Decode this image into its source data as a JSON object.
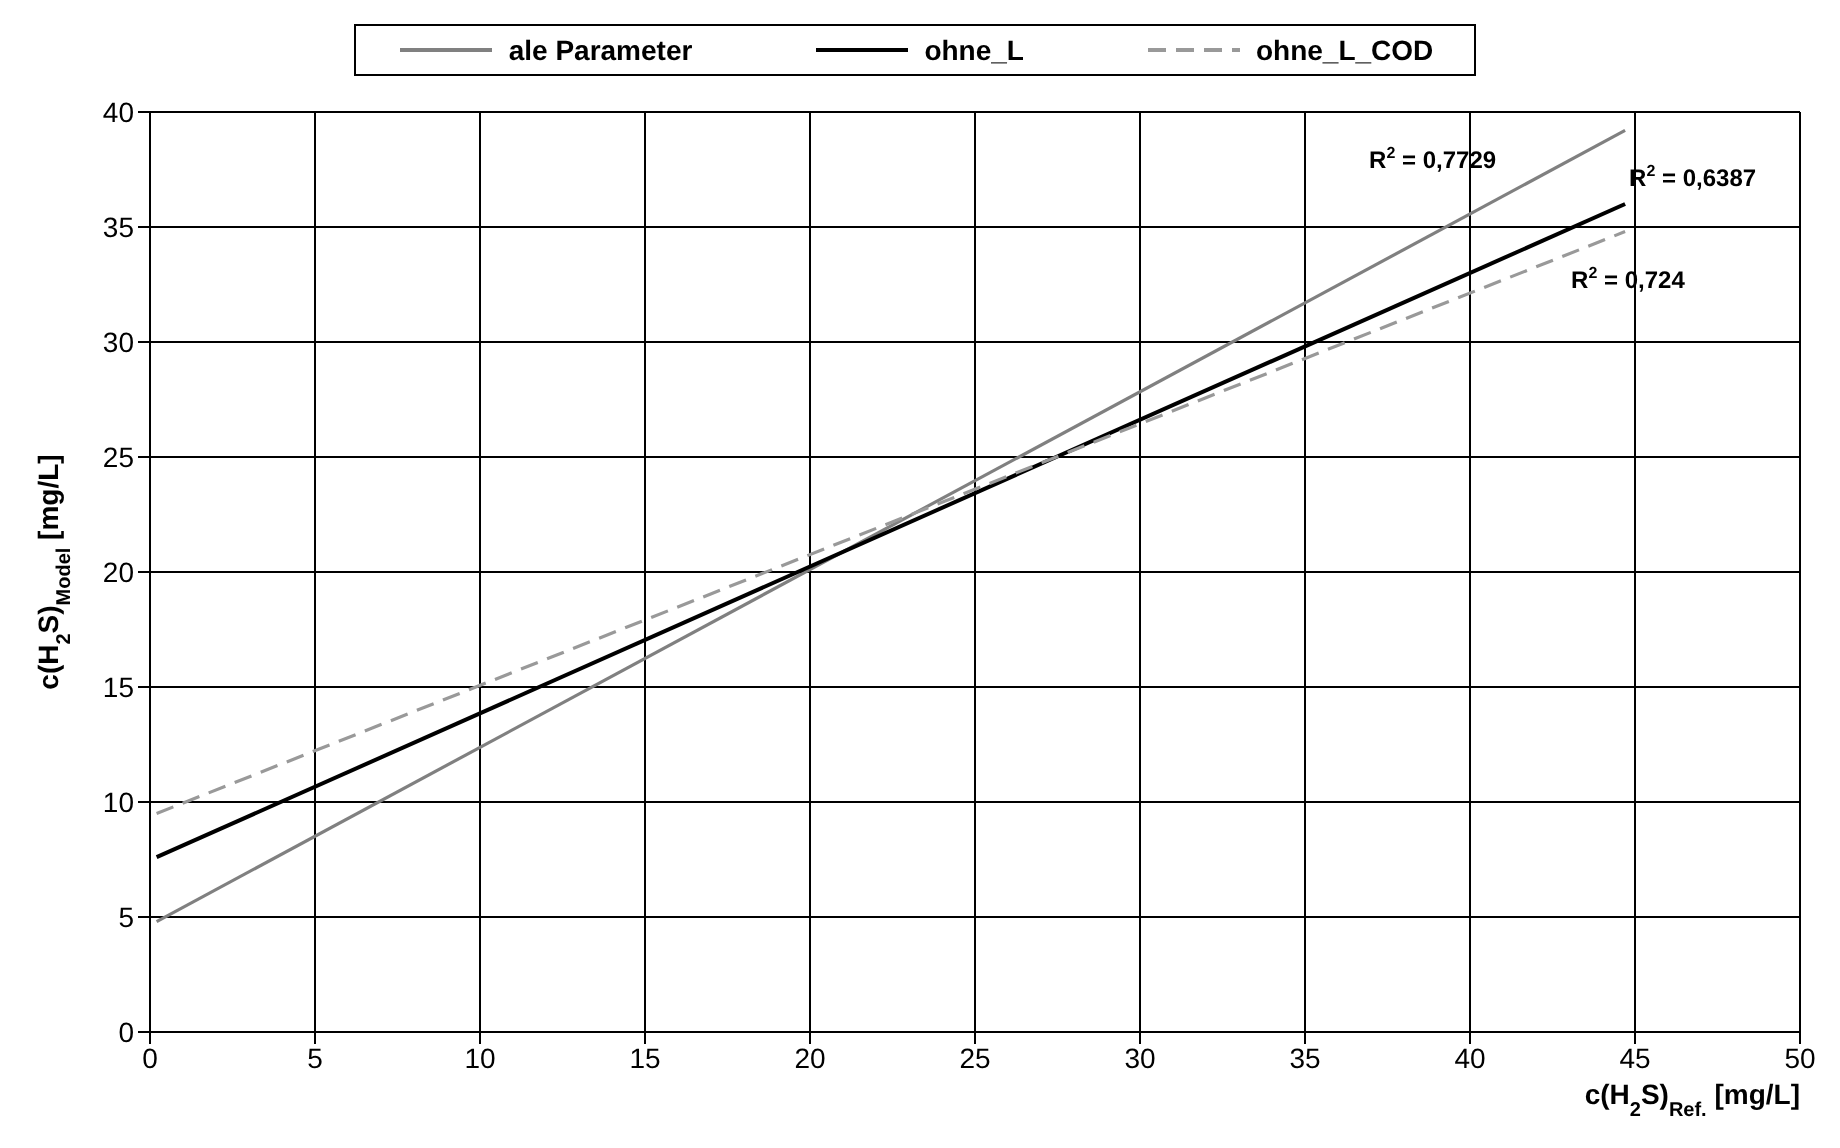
{
  "chart_data": {
    "type": "line",
    "xlabel": "c(H$_{2}$S)$_{Ref.}$ [mg/L]",
    "ylabel": "c(H$_{2}$S)$_{Model}$ [mg/L]",
    "xlim": [
      0,
      50
    ],
    "xticks": [
      0,
      5,
      10,
      15,
      20,
      25,
      30,
      35,
      40,
      45,
      50
    ],
    "ylim": [
      0,
      40
    ],
    "yticks": [
      0,
      5,
      10,
      15,
      20,
      25,
      30,
      35,
      40
    ],
    "x": [
      0.2,
      44.7
    ],
    "grid": true,
    "legend": "top",
    "marker": "none",
    "series": [
      {
        "name": "ale Parameter",
        "color": "#808080",
        "line_style": "solid",
        "values": [
          4.8,
          39.2
        ]
      },
      {
        "name": "ohne_L",
        "color": "#000000",
        "line_style": "solid",
        "values": [
          7.6,
          36.0
        ]
      },
      {
        "name": "ohne_L_COD",
        "color": "#999999",
        "line_style": "dashed",
        "values": [
          9.5,
          34.8
        ]
      }
    ],
    "annotations": [
      "R$^{2}$ = 0,7729",
      "R$^{2}$ = 0,6387",
      "R$^{2}$ = 0,724"
    ]
  }
}
